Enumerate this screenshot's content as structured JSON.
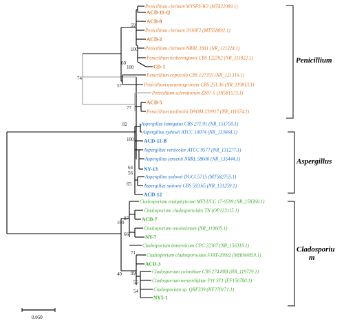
{
  "colors": {
    "penicillium": "#e07020",
    "aspergillus": "#1a6fc9",
    "cladosporium": "#3aa628",
    "branch": "#000000",
    "branch_light": "#999999"
  },
  "taxa": {
    "pen": [
      {
        "label": "Penicillium citrinum WYSFS-W2 (MT422089.1)",
        "bold": false
      },
      {
        "label": "ACD-11-Q",
        "bold": true
      },
      {
        "label": "ACD-8",
        "bold": true
      },
      {
        "label": "Penicillium citrinum 2010F2 (MT558892.1)",
        "bold": false
      },
      {
        "label": "ACD-2",
        "bold": true
      },
      {
        "label": "Penicillium citrinum NRRL 1841 (NR_121224.1)",
        "bold": false
      },
      {
        "label": "Penicillium hetheringtonii CBS 122392 (NR_111822.1)",
        "bold": false
      },
      {
        "label": "CD-1",
        "bold": true
      },
      {
        "label": "Penicillium copticola CBS 127355 (NR_121316.1)",
        "bold": false
      },
      {
        "label": "Penicillium aurantiogriseum CBS 251.36 (NR_119813.1)",
        "bold": false
      },
      {
        "label": "Penicillium sclerotiorum ZZ07-5 (JN581573.1)",
        "bold": false
      },
      {
        "label": "ACD-5",
        "bold": true
      },
      {
        "label": "Penicillium mallochii DAOM 239917 (NR_111674.1)",
        "bold": false
      }
    ],
    "asp": [
      {
        "label": "Aspergillus fumigatus CBS 271.91 (NR_151750.1)",
        "bold": false
      },
      {
        "label": "Aspergillus sydowii ATCC 10074 (NR_133664.1)",
        "bold": false
      },
      {
        "label": "ACD-11-B",
        "bold": true
      },
      {
        "label": "Aspergillus versicolor ATCC 9577 (NR_131277.1)",
        "bold": false
      },
      {
        "label": "Aspergillus jensenii NRRL 58600 (NR_135444.1)",
        "bold": false
      },
      {
        "label": "NY-13",
        "bold": true
      },
      {
        "label": "Aspergillus sydowii DUCC5715 (MT582755.1)",
        "bold": false
      },
      {
        "label": "Aspergillus sydowii CBS 593.65 (NR_131259.1)",
        "bold": false
      },
      {
        "label": "ACD-12",
        "bold": true
      }
    ],
    "cla": [
      {
        "label": "Cladosporium endophyticum MFLUCC 17-0599 (NR_158360.1)",
        "bold": false
      },
      {
        "label": "Cladosporium cladosporioides TN (OP123115.1)",
        "bold": false
      },
      {
        "label": "ACD-7",
        "bold": true
      },
      {
        "label": "Cladosporium tenuissimum (NR_119605.1)",
        "bold": false
      },
      {
        "label": "NY-7",
        "bold": true
      },
      {
        "label": "Cladosporium domesticum CPC 22307 (NR_156318.1)",
        "bold": false
      },
      {
        "label": "Cladosporium cladosporioides FJAT-20992 (MH044059.1)",
        "bold": false
      },
      {
        "label": "ACD-3",
        "bold": true
      },
      {
        "label": "Cladosporium colombiae CBS 274.80B (NR_119729.1)",
        "bold": false
      },
      {
        "label": "Cladosporium westerdijkiae P11 ST1 (EF156780.1)",
        "bold": false
      },
      {
        "label": "Cladosporium sp. QRF339 (KF278171.1)",
        "bold": false
      },
      {
        "label": "NY5-1",
        "bold": true
      }
    ]
  },
  "bootstrap": [
    "59",
    "100",
    "60",
    "57",
    "74",
    "100",
    "77",
    "82",
    "100",
    "64",
    "56",
    "65",
    "100",
    "87",
    "66",
    "40",
    "71",
    "99",
    "55",
    "54"
  ],
  "clades": [
    "Penicillium",
    "Aspergillus",
    "Cladosporiu\nm"
  ],
  "clade_label_lines": {
    "penicillium": "Penicillium",
    "aspergillus": "Aspergillus",
    "cladosporium_1": "Cladosporiu",
    "cladosporium_2": "m"
  },
  "scale_bar": {
    "label": "0.050"
  }
}
